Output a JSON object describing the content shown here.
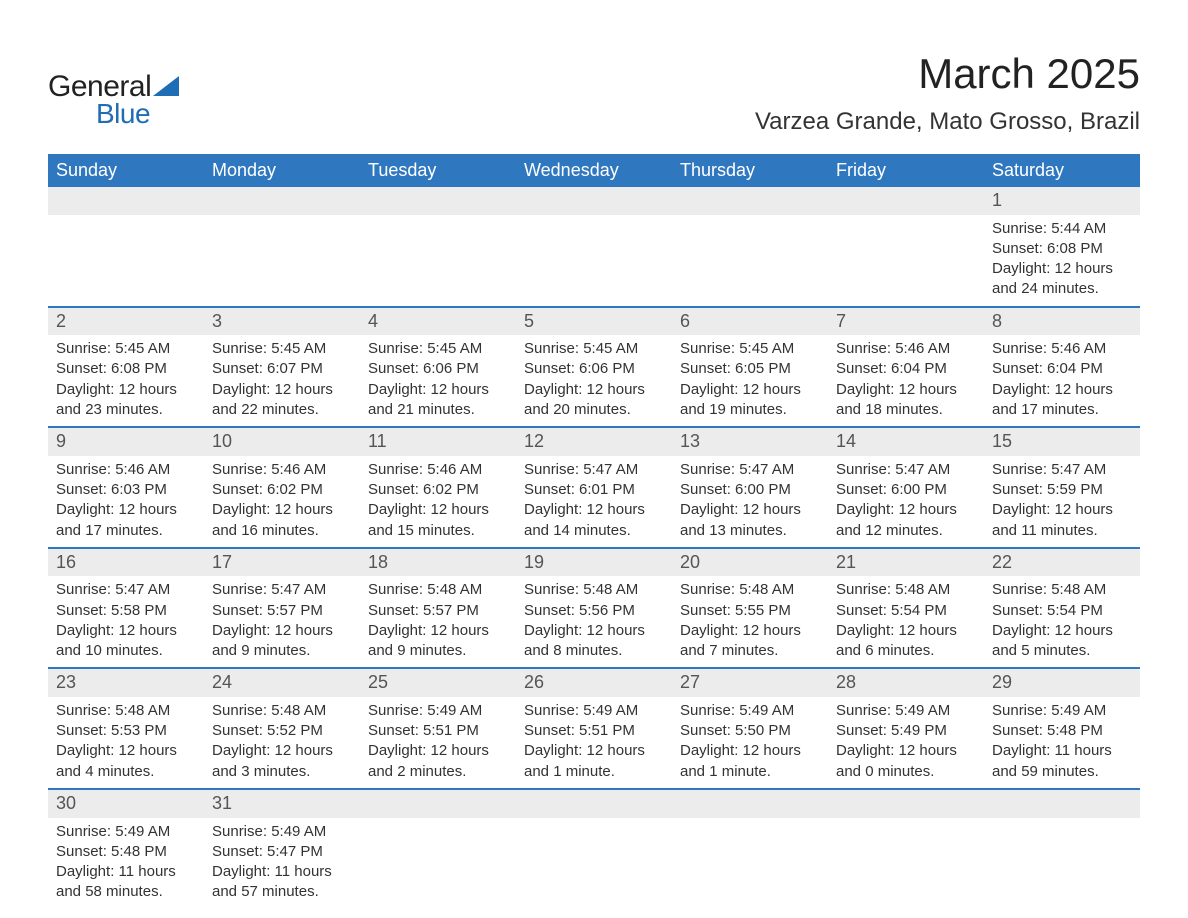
{
  "logo": {
    "line1": "General",
    "line2": "Blue",
    "accent_color": "#1f6db5"
  },
  "title": {
    "month": "March 2025",
    "location": "Varzea Grande, Mato Grosso, Brazil"
  },
  "colors": {
    "header_bg": "#2f78bf",
    "header_text": "#ffffff",
    "daynum_bg": "#ececec",
    "daynum_text": "#555555",
    "body_text": "#333333",
    "row_border": "#2f78bf",
    "page_bg": "#ffffff"
  },
  "typography": {
    "title_fontsize": 42,
    "location_fontsize": 24,
    "dow_fontsize": 18,
    "daynum_fontsize": 18,
    "body_fontsize": 15,
    "font_family": "Arial"
  },
  "days_of_week": [
    "Sunday",
    "Monday",
    "Tuesday",
    "Wednesday",
    "Thursday",
    "Friday",
    "Saturday"
  ],
  "weeks": [
    [
      null,
      null,
      null,
      null,
      null,
      null,
      {
        "n": "1",
        "sunrise": "Sunrise: 5:44 AM",
        "sunset": "Sunset: 6:08 PM",
        "daylight": "Daylight: 12 hours and 24 minutes."
      }
    ],
    [
      {
        "n": "2",
        "sunrise": "Sunrise: 5:45 AM",
        "sunset": "Sunset: 6:08 PM",
        "daylight": "Daylight: 12 hours and 23 minutes."
      },
      {
        "n": "3",
        "sunrise": "Sunrise: 5:45 AM",
        "sunset": "Sunset: 6:07 PM",
        "daylight": "Daylight: 12 hours and 22 minutes."
      },
      {
        "n": "4",
        "sunrise": "Sunrise: 5:45 AM",
        "sunset": "Sunset: 6:06 PM",
        "daylight": "Daylight: 12 hours and 21 minutes."
      },
      {
        "n": "5",
        "sunrise": "Sunrise: 5:45 AM",
        "sunset": "Sunset: 6:06 PM",
        "daylight": "Daylight: 12 hours and 20 minutes."
      },
      {
        "n": "6",
        "sunrise": "Sunrise: 5:45 AM",
        "sunset": "Sunset: 6:05 PM",
        "daylight": "Daylight: 12 hours and 19 minutes."
      },
      {
        "n": "7",
        "sunrise": "Sunrise: 5:46 AM",
        "sunset": "Sunset: 6:04 PM",
        "daylight": "Daylight: 12 hours and 18 minutes."
      },
      {
        "n": "8",
        "sunrise": "Sunrise: 5:46 AM",
        "sunset": "Sunset: 6:04 PM",
        "daylight": "Daylight: 12 hours and 17 minutes."
      }
    ],
    [
      {
        "n": "9",
        "sunrise": "Sunrise: 5:46 AM",
        "sunset": "Sunset: 6:03 PM",
        "daylight": "Daylight: 12 hours and 17 minutes."
      },
      {
        "n": "10",
        "sunrise": "Sunrise: 5:46 AM",
        "sunset": "Sunset: 6:02 PM",
        "daylight": "Daylight: 12 hours and 16 minutes."
      },
      {
        "n": "11",
        "sunrise": "Sunrise: 5:46 AM",
        "sunset": "Sunset: 6:02 PM",
        "daylight": "Daylight: 12 hours and 15 minutes."
      },
      {
        "n": "12",
        "sunrise": "Sunrise: 5:47 AM",
        "sunset": "Sunset: 6:01 PM",
        "daylight": "Daylight: 12 hours and 14 minutes."
      },
      {
        "n": "13",
        "sunrise": "Sunrise: 5:47 AM",
        "sunset": "Sunset: 6:00 PM",
        "daylight": "Daylight: 12 hours and 13 minutes."
      },
      {
        "n": "14",
        "sunrise": "Sunrise: 5:47 AM",
        "sunset": "Sunset: 6:00 PM",
        "daylight": "Daylight: 12 hours and 12 minutes."
      },
      {
        "n": "15",
        "sunrise": "Sunrise: 5:47 AM",
        "sunset": "Sunset: 5:59 PM",
        "daylight": "Daylight: 12 hours and 11 minutes."
      }
    ],
    [
      {
        "n": "16",
        "sunrise": "Sunrise: 5:47 AM",
        "sunset": "Sunset: 5:58 PM",
        "daylight": "Daylight: 12 hours and 10 minutes."
      },
      {
        "n": "17",
        "sunrise": "Sunrise: 5:47 AM",
        "sunset": "Sunset: 5:57 PM",
        "daylight": "Daylight: 12 hours and 9 minutes."
      },
      {
        "n": "18",
        "sunrise": "Sunrise: 5:48 AM",
        "sunset": "Sunset: 5:57 PM",
        "daylight": "Daylight: 12 hours and 9 minutes."
      },
      {
        "n": "19",
        "sunrise": "Sunrise: 5:48 AM",
        "sunset": "Sunset: 5:56 PM",
        "daylight": "Daylight: 12 hours and 8 minutes."
      },
      {
        "n": "20",
        "sunrise": "Sunrise: 5:48 AM",
        "sunset": "Sunset: 5:55 PM",
        "daylight": "Daylight: 12 hours and 7 minutes."
      },
      {
        "n": "21",
        "sunrise": "Sunrise: 5:48 AM",
        "sunset": "Sunset: 5:54 PM",
        "daylight": "Daylight: 12 hours and 6 minutes."
      },
      {
        "n": "22",
        "sunrise": "Sunrise: 5:48 AM",
        "sunset": "Sunset: 5:54 PM",
        "daylight": "Daylight: 12 hours and 5 minutes."
      }
    ],
    [
      {
        "n": "23",
        "sunrise": "Sunrise: 5:48 AM",
        "sunset": "Sunset: 5:53 PM",
        "daylight": "Daylight: 12 hours and 4 minutes."
      },
      {
        "n": "24",
        "sunrise": "Sunrise: 5:48 AM",
        "sunset": "Sunset: 5:52 PM",
        "daylight": "Daylight: 12 hours and 3 minutes."
      },
      {
        "n": "25",
        "sunrise": "Sunrise: 5:49 AM",
        "sunset": "Sunset: 5:51 PM",
        "daylight": "Daylight: 12 hours and 2 minutes."
      },
      {
        "n": "26",
        "sunrise": "Sunrise: 5:49 AM",
        "sunset": "Sunset: 5:51 PM",
        "daylight": "Daylight: 12 hours and 1 minute."
      },
      {
        "n": "27",
        "sunrise": "Sunrise: 5:49 AM",
        "sunset": "Sunset: 5:50 PM",
        "daylight": "Daylight: 12 hours and 1 minute."
      },
      {
        "n": "28",
        "sunrise": "Sunrise: 5:49 AM",
        "sunset": "Sunset: 5:49 PM",
        "daylight": "Daylight: 12 hours and 0 minutes."
      },
      {
        "n": "29",
        "sunrise": "Sunrise: 5:49 AM",
        "sunset": "Sunset: 5:48 PM",
        "daylight": "Daylight: 11 hours and 59 minutes."
      }
    ],
    [
      {
        "n": "30",
        "sunrise": "Sunrise: 5:49 AM",
        "sunset": "Sunset: 5:48 PM",
        "daylight": "Daylight: 11 hours and 58 minutes."
      },
      {
        "n": "31",
        "sunrise": "Sunrise: 5:49 AM",
        "sunset": "Sunset: 5:47 PM",
        "daylight": "Daylight: 11 hours and 57 minutes."
      },
      null,
      null,
      null,
      null,
      null
    ]
  ]
}
